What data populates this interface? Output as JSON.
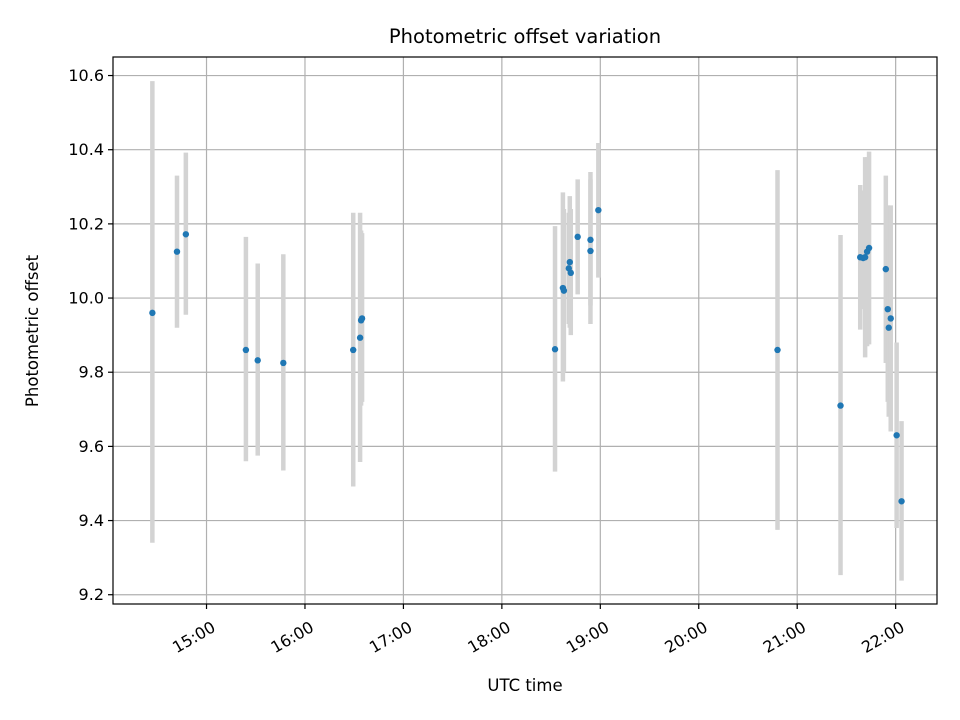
{
  "chart_data": {
    "type": "scatter",
    "title": "Photometric offset variation",
    "xlabel": "UTC time",
    "ylabel": "Photometric offset",
    "x_unit": "UTC time of day (hours)",
    "xlim": [
      14.05,
      22.42
    ],
    "ylim": [
      9.175,
      10.65
    ],
    "grid": true,
    "x_ticks": [
      {
        "value": 15,
        "label": "15:00"
      },
      {
        "value": 16,
        "label": "16:00"
      },
      {
        "value": 17,
        "label": "17:00"
      },
      {
        "value": 18,
        "label": "18:00"
      },
      {
        "value": 19,
        "label": "19:00"
      },
      {
        "value": 20,
        "label": "20:00"
      },
      {
        "value": 21,
        "label": "21:00"
      },
      {
        "value": 22,
        "label": "22:00"
      }
    ],
    "y_ticks": [
      {
        "value": 9.2,
        "label": "9.2"
      },
      {
        "value": 9.4,
        "label": "9.4"
      },
      {
        "value": 9.6,
        "label": "9.6"
      },
      {
        "value": 9.8,
        "label": "9.8"
      },
      {
        "value": 10.0,
        "label": "10.0"
      },
      {
        "value": 10.2,
        "label": "10.2"
      },
      {
        "value": 10.4,
        "label": "10.4"
      },
      {
        "value": 10.6,
        "label": "10.6"
      }
    ],
    "colors": {
      "point": "#1f77b4",
      "errorbar": "#d3d3d3",
      "grid": "#b0b0b0"
    },
    "points": [
      {
        "x": 14.45,
        "y": 9.96,
        "ylow": 9.34,
        "yhigh": 10.585
      },
      {
        "x": 14.7,
        "y": 10.125,
        "ylow": 9.92,
        "yhigh": 10.33
      },
      {
        "x": 14.79,
        "y": 10.172,
        "ylow": 9.955,
        "yhigh": 10.392
      },
      {
        "x": 15.4,
        "y": 9.86,
        "ylow": 9.56,
        "yhigh": 10.165
      },
      {
        "x": 15.52,
        "y": 9.832,
        "ylow": 9.575,
        "yhigh": 10.093
      },
      {
        "x": 15.78,
        "y": 9.825,
        "ylow": 9.535,
        "yhigh": 10.118
      },
      {
        "x": 16.49,
        "y": 9.86,
        "ylow": 9.492,
        "yhigh": 10.23
      },
      {
        "x": 16.56,
        "y": 9.893,
        "ylow": 9.558,
        "yhigh": 10.23
      },
      {
        "x": 16.57,
        "y": 9.94,
        "ylow": 9.71,
        "yhigh": 10.182
      },
      {
        "x": 16.58,
        "y": 9.945,
        "ylow": 9.72,
        "yhigh": 10.175
      },
      {
        "x": 18.54,
        "y": 9.862,
        "ylow": 9.532,
        "yhigh": 10.194
      },
      {
        "x": 18.62,
        "y": 10.027,
        "ylow": 9.775,
        "yhigh": 10.285
      },
      {
        "x": 18.63,
        "y": 10.02,
        "ylow": 9.8,
        "yhigh": 10.24
      },
      {
        "x": 18.68,
        "y": 10.08,
        "ylow": 9.93,
        "yhigh": 10.23
      },
      {
        "x": 18.69,
        "y": 10.097,
        "ylow": 9.92,
        "yhigh": 10.275
      },
      {
        "x": 18.7,
        "y": 10.068,
        "ylow": 9.9,
        "yhigh": 10.24
      },
      {
        "x": 18.77,
        "y": 10.165,
        "ylow": 10.01,
        "yhigh": 10.32
      },
      {
        "x": 18.9,
        "y": 10.157,
        "ylow": 9.98,
        "yhigh": 10.34
      },
      {
        "x": 18.9,
        "y": 10.127,
        "ylow": 9.93,
        "yhigh": 10.32
      },
      {
        "x": 18.98,
        "y": 10.237,
        "ylow": 10.055,
        "yhigh": 10.418
      },
      {
        "x": 20.8,
        "y": 9.86,
        "ylow": 9.375,
        "yhigh": 10.345
      },
      {
        "x": 21.44,
        "y": 9.71,
        "ylow": 9.253,
        "yhigh": 10.17
      },
      {
        "x": 21.64,
        "y": 10.11,
        "ylow": 9.915,
        "yhigh": 10.305
      },
      {
        "x": 21.67,
        "y": 10.108,
        "ylow": 9.97,
        "yhigh": 10.29
      },
      {
        "x": 21.69,
        "y": 10.11,
        "ylow": 9.84,
        "yhigh": 10.38
      },
      {
        "x": 21.71,
        "y": 10.125,
        "ylow": 9.87,
        "yhigh": 10.38
      },
      {
        "x": 21.73,
        "y": 10.135,
        "ylow": 9.875,
        "yhigh": 10.395
      },
      {
        "x": 21.9,
        "y": 10.078,
        "ylow": 9.825,
        "yhigh": 10.33
      },
      {
        "x": 21.92,
        "y": 9.97,
        "ylow": 9.72,
        "yhigh": 10.25
      },
      {
        "x": 21.93,
        "y": 9.92,
        "ylow": 9.68,
        "yhigh": 10.16
      },
      {
        "x": 21.95,
        "y": 9.945,
        "ylow": 9.64,
        "yhigh": 10.25
      },
      {
        "x": 22.01,
        "y": 9.63,
        "ylow": 9.38,
        "yhigh": 9.88
      },
      {
        "x": 22.06,
        "y": 9.452,
        "ylow": 9.238,
        "yhigh": 9.668
      }
    ]
  }
}
